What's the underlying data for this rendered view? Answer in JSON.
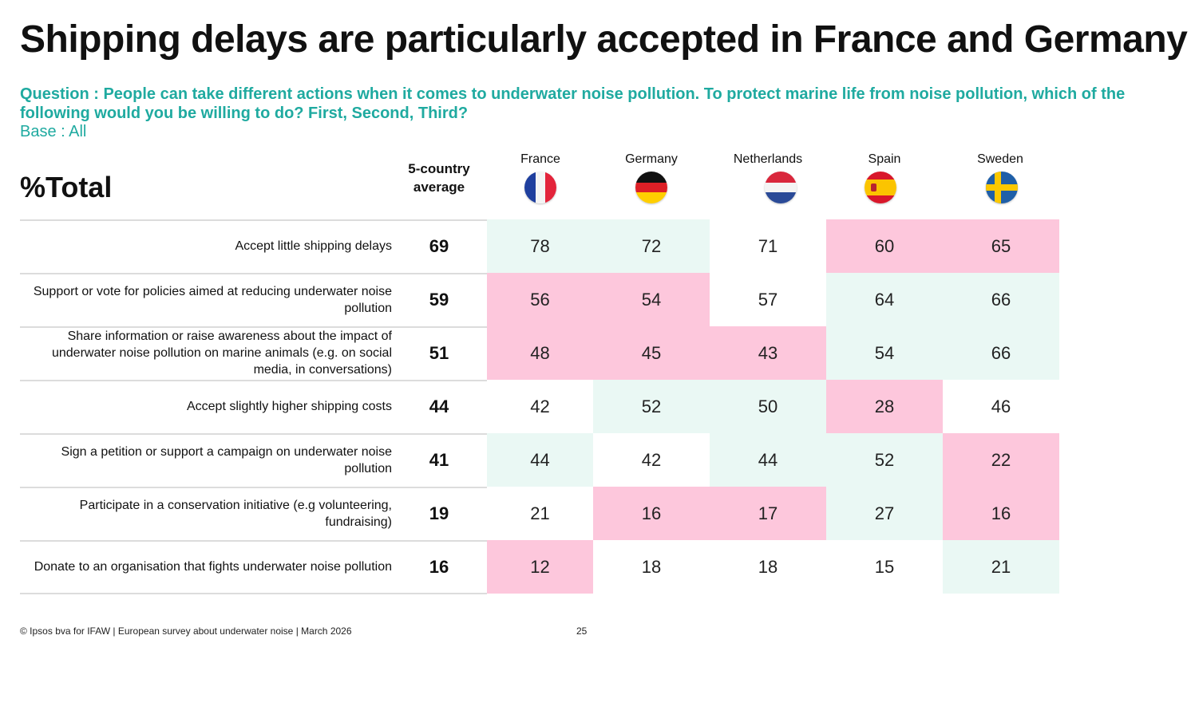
{
  "title": "Shipping delays are particularly accepted in France and Germany",
  "question": "Question : People can take different actions when it comes to underwater noise pollution. To protect marine life from noise pollution, which of the following would you be willing to do? First, Second, Third?",
  "base": "Base : All",
  "total_label": "%Total",
  "avg_header_line1": "5-country",
  "avg_header_line2": "average",
  "footer": "© Ipsos bva for IFAW | European survey about underwater noise | March 2026",
  "page_number": "25",
  "colors": {
    "accent": "#1faaa0",
    "higher": "#eaf8f4",
    "lower": "#fdc7dc",
    "neutral": "#ffffff"
  },
  "chart_data": {
    "type": "table",
    "title": "Shipping delays are particularly accepted in France and Germany",
    "columns": [
      "France",
      "Germany",
      "Netherlands",
      "Spain",
      "Sweden"
    ],
    "flags": [
      "france-flag-icon",
      "germany-flag-icon",
      "netherlands-flag-icon",
      "spain-flag-icon",
      "sweden-flag-icon"
    ],
    "rows": [
      {
        "label": "Accept little shipping delays",
        "average": 69,
        "values": [
          78,
          72,
          71,
          60,
          65
        ],
        "highlight": [
          "higher",
          "higher",
          "neutral",
          "lower",
          "lower"
        ]
      },
      {
        "label": "Support or vote for policies aimed at reducing underwater noise pollution",
        "average": 59,
        "values": [
          56,
          54,
          57,
          64,
          66
        ],
        "highlight": [
          "lower",
          "lower",
          "neutral",
          "higher",
          "higher"
        ]
      },
      {
        "label": "Share information or raise awareness about the impact of underwater noise pollution on marine animals (e.g. on social media, in conversations)",
        "average": 51,
        "values": [
          48,
          45,
          43,
          54,
          66
        ],
        "highlight": [
          "lower",
          "lower",
          "lower",
          "higher",
          "higher"
        ]
      },
      {
        "label": "Accept slightly higher shipping costs",
        "average": 44,
        "values": [
          42,
          52,
          50,
          28,
          46
        ],
        "highlight": [
          "neutral",
          "higher",
          "higher",
          "lower",
          "neutral"
        ]
      },
      {
        "label": "Sign a petition or support a campaign on underwater noise pollution",
        "average": 41,
        "values": [
          44,
          42,
          44,
          52,
          22
        ],
        "highlight": [
          "higher",
          "neutral",
          "higher",
          "higher",
          "lower"
        ]
      },
      {
        "label": "Participate in a conservation initiative (e.g volunteering, fundraising)",
        "average": 19,
        "values": [
          21,
          16,
          17,
          27,
          16
        ],
        "highlight": [
          "neutral",
          "lower",
          "lower",
          "higher",
          "lower"
        ]
      },
      {
        "label": "Donate to an organisation that fights underwater noise pollution",
        "average": 16,
        "values": [
          12,
          18,
          18,
          15,
          21
        ],
        "highlight": [
          "lower",
          "neutral",
          "neutral",
          "neutral",
          "higher"
        ]
      }
    ]
  }
}
